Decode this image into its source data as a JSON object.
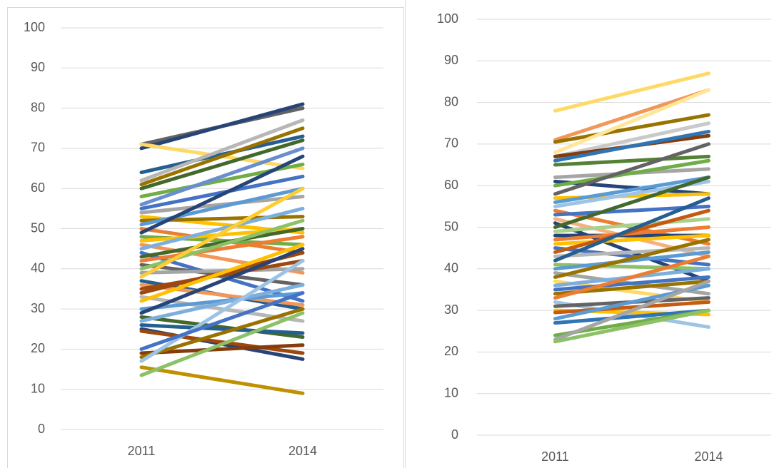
{
  "chart_data": [
    {
      "type": "line",
      "categories": [
        "2011",
        "2014"
      ],
      "ylim": [
        0,
        100
      ],
      "yticks": [
        0,
        10,
        20,
        30,
        40,
        50,
        60,
        70,
        80,
        90,
        100
      ],
      "grid": true,
      "series": [
        {
          "color": "#636363",
          "values": [
            71,
            80
          ]
        },
        {
          "color": "#264478",
          "values": [
            70,
            81
          ]
        },
        {
          "color": "#ffd966",
          "values": [
            71,
            65
          ]
        },
        {
          "color": "#255e91",
          "values": [
            64,
            73
          ]
        },
        {
          "color": "#997300",
          "values": [
            61,
            75
          ]
        },
        {
          "color": "#43682b",
          "values": [
            60,
            72
          ]
        },
        {
          "color": "#b7b7b7",
          "values": [
            62,
            77
          ]
        },
        {
          "color": "#70ad47",
          "values": [
            58,
            66
          ]
        },
        {
          "color": "#698ed0",
          "values": [
            56,
            70
          ]
        },
        {
          "color": "#4472c4",
          "values": [
            55,
            63
          ]
        },
        {
          "color": "#a5a5a5",
          "values": [
            54,
            58
          ]
        },
        {
          "color": "#ffc000",
          "values": [
            53,
            49
          ]
        },
        {
          "color": "#997300",
          "values": [
            52,
            53
          ]
        },
        {
          "color": "#5b9bd5",
          "values": [
            51,
            60
          ]
        },
        {
          "color": "#ed7d31",
          "values": [
            50,
            44
          ]
        },
        {
          "color": "#264478",
          "values": [
            49,
            68
          ]
        },
        {
          "color": "#70ad47",
          "values": [
            48,
            46
          ]
        },
        {
          "color": "#ffc000",
          "values": [
            47,
            50
          ]
        },
        {
          "color": "#f1975a",
          "values": [
            46,
            39
          ]
        },
        {
          "color": "#7cafdd",
          "values": [
            45,
            55
          ]
        },
        {
          "color": "#4472c4",
          "values": [
            44,
            32
          ]
        },
        {
          "color": "#43682b",
          "values": [
            43,
            50
          ]
        },
        {
          "color": "#ed7d31",
          "values": [
            42,
            48
          ]
        },
        {
          "color": "#636363",
          "values": [
            41,
            36
          ]
        },
        {
          "color": "#8cc168",
          "values": [
            40,
            52
          ]
        },
        {
          "color": "#a5a5a5",
          "values": [
            39,
            40
          ]
        },
        {
          "color": "#ffcd33",
          "values": [
            38,
            60
          ]
        },
        {
          "color": "#255e91",
          "values": [
            37,
            30
          ]
        },
        {
          "color": "#f1975a",
          "values": [
            36,
            31
          ]
        },
        {
          "color": "#9e480e",
          "values": [
            35,
            42
          ]
        },
        {
          "color": "#9e480e",
          "values": [
            34,
            44
          ]
        },
        {
          "color": "#b7b7b7",
          "values": [
            33,
            27
          ]
        },
        {
          "color": "#ffc000",
          "values": [
            32,
            46
          ]
        },
        {
          "color": "#5b9bd5",
          "values": [
            30,
            34
          ]
        },
        {
          "color": "#264478",
          "values": [
            29,
            45
          ]
        },
        {
          "color": "#43682b",
          "values": [
            28,
            23
          ]
        },
        {
          "color": "#7cafdd",
          "values": [
            27,
            36
          ]
        },
        {
          "color": "#255e91",
          "values": [
            26,
            24
          ]
        },
        {
          "color": "#264478",
          "values": [
            25,
            17.5
          ]
        },
        {
          "color": "#9e480e",
          "values": [
            24.5,
            19
          ]
        },
        {
          "color": "#843c0c",
          "values": [
            19,
            21
          ]
        },
        {
          "color": "#997300",
          "values": [
            18,
            30
          ]
        },
        {
          "color": "#9dc3e6",
          "values": [
            17,
            42
          ]
        },
        {
          "color": "#bf9000",
          "values": [
            15.5,
            9
          ]
        },
        {
          "color": "#8cc168",
          "values": [
            13.5,
            29
          ]
        },
        {
          "color": "#4472c4",
          "values": [
            20,
            34
          ]
        }
      ]
    },
    {
      "type": "line",
      "categories": [
        "2011",
        "2014"
      ],
      "ylim": [
        0,
        100
      ],
      "yticks": [
        0,
        10,
        20,
        30,
        40,
        50,
        60,
        70,
        80,
        90,
        100
      ],
      "grid": true,
      "series": [
        {
          "color": "#ffd966",
          "values": [
            78,
            87
          ]
        },
        {
          "color": "#f1975a",
          "values": [
            71,
            83
          ]
        },
        {
          "color": "#997300",
          "values": [
            70.5,
            77
          ]
        },
        {
          "color": "#ffe699",
          "values": [
            68,
            83
          ]
        },
        {
          "color": "#c9c9c9",
          "values": [
            67,
            75
          ]
        },
        {
          "color": "#843c0c",
          "values": [
            67,
            72
          ]
        },
        {
          "color": "#2e75b6",
          "values": [
            66,
            73
          ]
        },
        {
          "color": "#548235",
          "values": [
            65,
            67
          ]
        },
        {
          "color": "#a5a5a5",
          "values": [
            62,
            64
          ]
        },
        {
          "color": "#264478",
          "values": [
            61,
            58
          ]
        },
        {
          "color": "#70ad47",
          "values": [
            60,
            66
          ]
        },
        {
          "color": "#636363",
          "values": [
            58,
            70
          ]
        },
        {
          "color": "#ffc000",
          "values": [
            57,
            58
          ]
        },
        {
          "color": "#5b9bd5",
          "values": [
            56,
            62
          ]
        },
        {
          "color": "#9dc3e6",
          "values": [
            55,
            61
          ]
        },
        {
          "color": "#ed7d31",
          "values": [
            54,
            46
          ]
        },
        {
          "color": "#4472c4",
          "values": [
            53,
            55
          ]
        },
        {
          "color": "#f4b183",
          "values": [
            52,
            43
          ]
        },
        {
          "color": "#264478",
          "values": [
            51,
            37
          ]
        },
        {
          "color": "#43682b",
          "values": [
            50,
            62
          ]
        },
        {
          "color": "#a9d18e",
          "values": [
            49,
            52
          ]
        },
        {
          "color": "#264478",
          "values": [
            48,
            48
          ]
        },
        {
          "color": "#ed7d31",
          "values": [
            47,
            50
          ]
        },
        {
          "color": "#ffc000",
          "values": [
            46,
            48
          ]
        },
        {
          "color": "#4472c4",
          "values": [
            45,
            41
          ]
        },
        {
          "color": "#c55a11",
          "values": [
            44,
            54
          ]
        },
        {
          "color": "#b7b7b7",
          "values": [
            43,
            45
          ]
        },
        {
          "color": "#255e91",
          "values": [
            42,
            57
          ]
        },
        {
          "color": "#8cc168",
          "values": [
            41,
            40
          ]
        },
        {
          "color": "#5b9bd5",
          "values": [
            40,
            44
          ]
        },
        {
          "color": "#a5a5a5",
          "values": [
            39,
            34
          ]
        },
        {
          "color": "#997300",
          "values": [
            38,
            47
          ]
        },
        {
          "color": "#ffd966",
          "values": [
            37,
            32
          ]
        },
        {
          "color": "#7cafdd",
          "values": [
            36,
            40
          ]
        },
        {
          "color": "#4472c4",
          "values": [
            35,
            38
          ]
        },
        {
          "color": "#997300",
          "values": [
            34,
            37
          ]
        },
        {
          "color": "#ed7d31",
          "values": [
            33,
            43
          ]
        },
        {
          "color": "#9dc3e6",
          "values": [
            32,
            26
          ]
        },
        {
          "color": "#636363",
          "values": [
            31,
            33
          ]
        },
        {
          "color": "#ffc000",
          "values": [
            30,
            29
          ]
        },
        {
          "color": "#c55a11",
          "values": [
            29.5,
            32
          ]
        },
        {
          "color": "#5b9bd5",
          "values": [
            28,
            36
          ]
        },
        {
          "color": "#2e75b6",
          "values": [
            27,
            30
          ]
        },
        {
          "color": "#70ad47",
          "values": [
            24,
            30
          ]
        },
        {
          "color": "#a5a5a5",
          "values": [
            23,
            37
          ]
        },
        {
          "color": "#8cc168",
          "values": [
            22.5,
            30
          ]
        }
      ]
    }
  ]
}
